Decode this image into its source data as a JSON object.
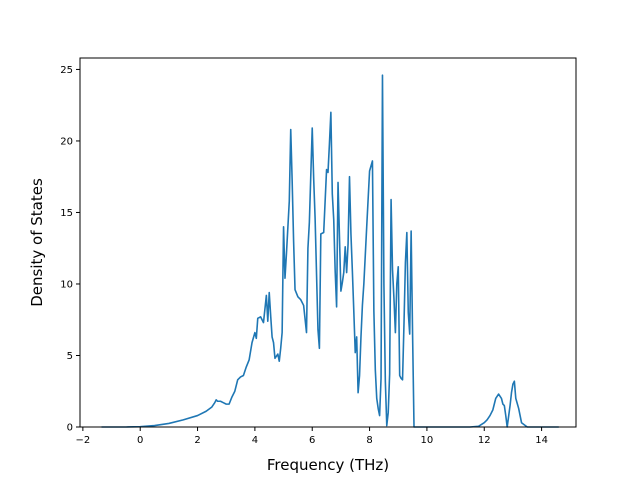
{
  "chart_data": {
    "type": "line",
    "xlabel": "Frequency (THz)",
    "ylabel": "Density of States",
    "xlim": [
      -2.1,
      15.2
    ],
    "ylim": [
      0,
      25.8
    ],
    "xticks": [
      -2,
      0,
      2,
      4,
      6,
      8,
      10,
      12,
      14
    ],
    "yticks": [
      0,
      5,
      10,
      15,
      20,
      25
    ],
    "xtick_labels": [
      "−2",
      "0",
      "2",
      "4",
      "6",
      "8",
      "10",
      "12",
      "14"
    ],
    "ytick_labels": [
      "0",
      "5",
      "10",
      "15",
      "20",
      "25"
    ],
    "grid": false,
    "line_color": "#1f77b4",
    "series": [
      {
        "x": [
          -1.35,
          -0.5,
          0,
          0.5,
          1.0,
          1.5,
          2.0,
          2.3,
          2.5,
          2.6,
          2.65,
          2.7,
          2.8,
          2.9,
          3.0,
          3.1,
          3.2,
          3.3,
          3.4,
          3.5,
          3.6,
          3.7,
          3.8,
          3.9,
          4.0,
          4.05,
          4.1,
          4.2,
          4.3,
          4.4,
          4.45,
          4.5,
          4.55,
          4.6,
          4.65,
          4.7,
          4.8,
          4.85,
          4.9,
          4.95,
          5.0,
          5.05,
          5.1,
          5.2,
          5.25,
          5.3,
          5.35,
          5.4,
          5.5,
          5.6,
          5.7,
          5.8,
          5.85,
          5.9,
          6.0,
          6.05,
          6.1,
          6.2,
          6.25,
          6.3,
          6.4,
          6.5,
          6.55,
          6.6,
          6.65,
          6.7,
          6.75,
          6.8,
          6.85,
          6.9,
          7.0,
          7.05,
          7.1,
          7.15,
          7.2,
          7.25,
          7.3,
          7.35,
          7.4,
          7.45,
          7.5,
          7.55,
          7.6,
          7.65,
          7.7,
          7.75,
          7.8,
          7.9,
          8.0,
          8.1,
          8.15,
          8.2,
          8.25,
          8.3,
          8.35,
          8.4,
          8.45,
          8.5,
          8.55,
          8.6,
          8.65,
          8.7,
          8.75,
          8.8,
          8.85,
          8.9,
          8.95,
          9.0,
          9.05,
          9.1,
          9.15,
          9.2,
          9.25,
          9.3,
          9.35,
          9.4,
          9.45,
          9.5,
          9.55,
          9.6,
          9.65,
          9.7,
          9.75,
          9.8,
          9.85,
          9.9,
          9.95,
          10.0,
          10.5,
          11.0,
          11.5,
          11.8,
          12.0,
          12.1,
          12.2,
          12.3,
          12.35,
          12.4,
          12.5,
          12.6,
          12.65,
          12.7,
          12.75,
          12.8,
          12.9,
          12.95,
          13.0,
          13.05,
          13.1,
          13.2,
          13.3,
          13.5,
          14.0,
          14.6
        ],
        "values": [
          0,
          0,
          0.02,
          0.1,
          0.25,
          0.5,
          0.8,
          1.1,
          1.4,
          1.7,
          1.9,
          1.8,
          1.8,
          1.7,
          1.6,
          1.6,
          2.1,
          2.5,
          3.3,
          3.5,
          3.6,
          4.2,
          4.7,
          5.9,
          6.6,
          6.2,
          7.6,
          7.7,
          7.3,
          9.2,
          7.4,
          9.4,
          7.8,
          6.3,
          5.9,
          4.8,
          5.1,
          4.6,
          5.5,
          6.6,
          14.0,
          10.4,
          12.1,
          15.8,
          20.8,
          17.2,
          13.0,
          9.6,
          9.1,
          8.9,
          8.5,
          6.6,
          12.5,
          14.3,
          20.9,
          17.4,
          14.6,
          6.8,
          5.5,
          13.5,
          13.6,
          18.0,
          17.8,
          19.8,
          22.0,
          16.3,
          14.5,
          10.9,
          8.4,
          17.1,
          9.5,
          10.1,
          10.8,
          12.6,
          10.8,
          12.8,
          17.5,
          13.5,
          10.9,
          8.1,
          5.2,
          6.3,
          2.4,
          3.6,
          6.3,
          8.5,
          10.0,
          14.0,
          17.9,
          18.6,
          8.1,
          4.0,
          2.0,
          1.3,
          0.8,
          3.4,
          24.6,
          10.0,
          3.2,
          0.1,
          1.0,
          3.7,
          15.9,
          11.0,
          9.0,
          6.6,
          10.0,
          11.2,
          3.6,
          3.4,
          3.3,
          7.2,
          11.5,
          13.6,
          8.0,
          6.5,
          13.7,
          6.5,
          0.0,
          0.0,
          0.0,
          0.0,
          0.0,
          0.0,
          0.0,
          0.0,
          0.0,
          0.0,
          0,
          0,
          0,
          0.05,
          0.3,
          0.5,
          0.8,
          1.2,
          1.6,
          2.0,
          2.3,
          2.0,
          1.6,
          1.5,
          0.8,
          0.0,
          1.5,
          2.4,
          3.0,
          3.2,
          2.0,
          1.3,
          0.3,
          0,
          0,
          0
        ]
      }
    ]
  }
}
